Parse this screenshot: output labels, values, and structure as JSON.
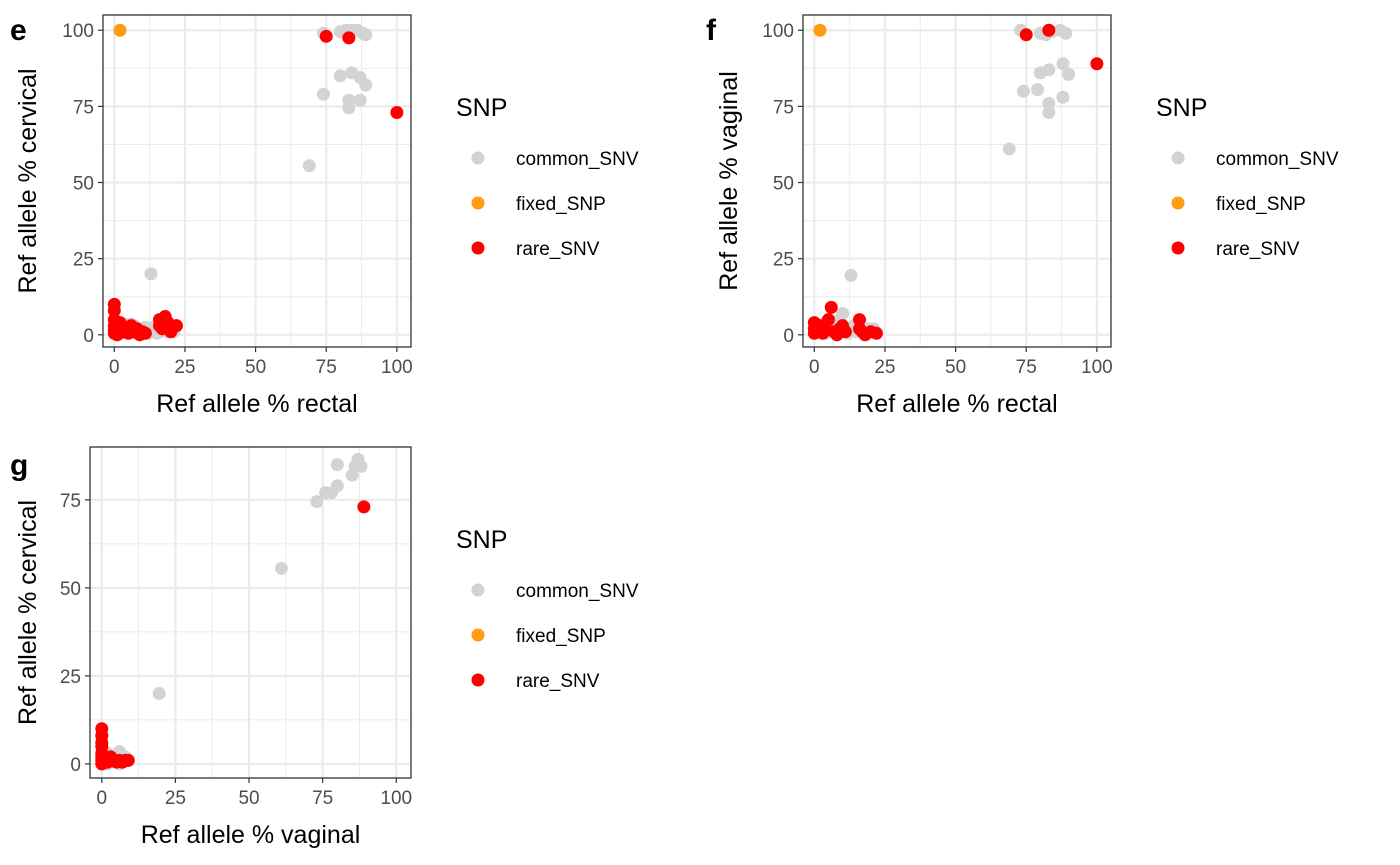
{
  "colors": {
    "common_SNV": "#d3d3d3",
    "fixed_SNP": "#ff9c0f",
    "rare_SNV": "#ff0000",
    "grid": "#ebebeb",
    "panel_border": "#333333"
  },
  "chart_data": [
    {
      "type": "scatter",
      "panel_label": "e",
      "xlabel": "Ref allele % rectal",
      "ylabel": "Ref allele % cervical",
      "xlim": [
        -4,
        105
      ],
      "ylim": [
        -4,
        105
      ],
      "x_ticks": [
        0,
        25,
        50,
        75,
        100
      ],
      "y_ticks": [
        0,
        25,
        50,
        75,
        100
      ],
      "grid": true,
      "legend": {
        "title": "SNP",
        "position": "right",
        "entries": [
          "common_SNV",
          "fixed_SNP",
          "rare_SNV"
        ]
      },
      "series": [
        {
          "name": "common_SNV",
          "color": "#d3d3d3",
          "points": [
            [
              74,
              99
            ],
            [
              80,
              99.5
            ],
            [
              82,
              100
            ],
            [
              84,
              100
            ],
            [
              86,
              100
            ],
            [
              88,
              99
            ],
            [
              89,
              98.5
            ],
            [
              80,
              85
            ],
            [
              84,
              86
            ],
            [
              87,
              84.5
            ],
            [
              89,
              82
            ],
            [
              74,
              79
            ],
            [
              83,
              77
            ],
            [
              87,
              77
            ],
            [
              83,
              74.5
            ],
            [
              69,
              55.5
            ],
            [
              13,
              20
            ],
            [
              1,
              3
            ],
            [
              2,
              1.5
            ],
            [
              3,
              0.5
            ],
            [
              4,
              3.5
            ],
            [
              5,
              2
            ],
            [
              6,
              1
            ],
            [
              7,
              3
            ],
            [
              8,
              0.5
            ],
            [
              9,
              2
            ],
            [
              10,
              1
            ],
            [
              11,
              2.5
            ],
            [
              12,
              0.5
            ],
            [
              13,
              1.5
            ],
            [
              14,
              2.5
            ],
            [
              15,
              0.5
            ],
            [
              16,
              1
            ],
            [
              18,
              2
            ],
            [
              19,
              1
            ],
            [
              20,
              2.5
            ],
            [
              21,
              1
            ],
            [
              3,
              3
            ],
            [
              6,
              3.5
            ],
            [
              11,
              1
            ]
          ]
        },
        {
          "name": "fixed_SNP",
          "color": "#ff9c0f",
          "points": [
            [
              2,
              100
            ]
          ]
        },
        {
          "name": "rare_SNV",
          "color": "#ff0000",
          "points": [
            [
              75,
              98
            ],
            [
              83,
              97.5
            ],
            [
              100,
              73
            ],
            [
              0,
              10
            ],
            [
              0,
              8
            ],
            [
              0,
              5
            ],
            [
              0,
              3
            ],
            [
              0,
              1.5
            ],
            [
              0,
              0.5
            ],
            [
              1,
              0
            ],
            [
              2,
              4
            ],
            [
              3,
              1
            ],
            [
              4,
              2
            ],
            [
              5,
              0.5
            ],
            [
              6,
              3
            ],
            [
              7,
              1
            ],
            [
              8,
              2
            ],
            [
              9,
              0
            ],
            [
              10,
              1
            ],
            [
              11,
              0.5
            ],
            [
              16,
              3
            ],
            [
              16,
              5
            ],
            [
              17,
              2
            ],
            [
              18,
              6
            ],
            [
              19,
              4
            ],
            [
              20,
              1
            ],
            [
              22,
              3
            ]
          ]
        }
      ]
    },
    {
      "type": "scatter",
      "panel_label": "f",
      "xlabel": "Ref allele % rectal",
      "ylabel": "Ref allele % vaginal",
      "xlim": [
        -4,
        105
      ],
      "ylim": [
        -4,
        105
      ],
      "x_ticks": [
        0,
        25,
        50,
        75,
        100
      ],
      "y_ticks": [
        0,
        25,
        50,
        75,
        100
      ],
      "grid": true,
      "legend": {
        "title": "SNP",
        "position": "right",
        "entries": [
          "common_SNV",
          "fixed_SNP",
          "rare_SNV"
        ]
      },
      "series": [
        {
          "name": "common_SNV",
          "color": "#d3d3d3",
          "points": [
            [
              73,
              100
            ],
            [
              80,
              99
            ],
            [
              82,
              98.5
            ],
            [
              84,
              99.5
            ],
            [
              87,
              100
            ],
            [
              89,
              99
            ],
            [
              80,
              86
            ],
            [
              83,
              87
            ],
            [
              88,
              89
            ],
            [
              90,
              85.5
            ],
            [
              74,
              80
            ],
            [
              79,
              80.5
            ],
            [
              83,
              76
            ],
            [
              88,
              78
            ],
            [
              83,
              73
            ],
            [
              69,
              61
            ],
            [
              13,
              19.5
            ],
            [
              1,
              2
            ],
            [
              2,
              1
            ],
            [
              3,
              3
            ],
            [
              4,
              0.5
            ],
            [
              5,
              2
            ],
            [
              6,
              1
            ],
            [
              7,
              3
            ],
            [
              8,
              0.5
            ],
            [
              9,
              2
            ],
            [
              10,
              7
            ],
            [
              11,
              2
            ],
            [
              12,
              0.5
            ],
            [
              13,
              1.5
            ],
            [
              14,
              3
            ],
            [
              15,
              1
            ],
            [
              16,
              2
            ],
            [
              18,
              1
            ],
            [
              19,
              2
            ],
            [
              20,
              1
            ],
            [
              21,
              2
            ],
            [
              4,
              4
            ],
            [
              9,
              5
            ]
          ]
        },
        {
          "name": "fixed_SNP",
          "color": "#ff9c0f",
          "points": [
            [
              2,
              100
            ]
          ]
        },
        {
          "name": "rare_SNV",
          "color": "#ff0000",
          "points": [
            [
              75,
              98.5
            ],
            [
              83,
              100
            ],
            [
              100,
              89
            ],
            [
              0,
              4
            ],
            [
              0,
              2
            ],
            [
              0,
              0.5
            ],
            [
              1,
              1
            ],
            [
              2,
              3
            ],
            [
              3,
              0.5
            ],
            [
              4,
              2
            ],
            [
              5,
              5
            ],
            [
              6,
              9
            ],
            [
              7,
              1
            ],
            [
              8,
              0
            ],
            [
              9,
              2
            ],
            [
              10,
              3
            ],
            [
              11,
              1
            ],
            [
              16,
              5
            ],
            [
              16,
              2
            ],
            [
              17,
              1
            ],
            [
              18,
              0
            ],
            [
              20,
              1
            ],
            [
              22,
              0.5
            ]
          ]
        }
      ]
    },
    {
      "type": "scatter",
      "panel_label": "g",
      "xlabel": "Ref allele % vaginal",
      "ylabel": "Ref allele % cervical",
      "xlim": [
        -4,
        105
      ],
      "ylim": [
        -4,
        90
      ],
      "x_ticks": [
        0,
        25,
        50,
        75,
        100
      ],
      "y_ticks": [
        0,
        25,
        50,
        75
      ],
      "grid": true,
      "legend": {
        "title": "SNP",
        "position": "right",
        "entries": [
          "common_SNV",
          "fixed_SNP",
          "rare_SNV"
        ]
      },
      "series": [
        {
          "name": "common_SNV",
          "color": "#d3d3d3",
          "points": [
            [
              80,
              85
            ],
            [
              87,
              86.5
            ],
            [
              86,
              84.5
            ],
            [
              88,
              84.5
            ],
            [
              85,
              82
            ],
            [
              80,
              79
            ],
            [
              76,
              77
            ],
            [
              78,
              77
            ],
            [
              73,
              74.5
            ],
            [
              61,
              55.5
            ],
            [
              19.5,
              20
            ],
            [
              1,
              0.5
            ],
            [
              2,
              3
            ],
            [
              3,
              1
            ],
            [
              4,
              2
            ],
            [
              5,
              0.5
            ],
            [
              6,
              3.5
            ],
            [
              7,
              1
            ],
            [
              8,
              2
            ],
            [
              2,
              0
            ],
            [
              3,
              0.5
            ],
            [
              5,
              1.5
            ],
            [
              6,
              0
            ]
          ]
        },
        {
          "name": "fixed_SNP",
          "color": "#ff9c0f",
          "points": []
        },
        {
          "name": "rare_SNV",
          "color": "#ff0000",
          "points": [
            [
              89,
              73
            ],
            [
              0,
              10
            ],
            [
              0,
              8
            ],
            [
              0,
              6
            ],
            [
              0,
              5
            ],
            [
              0,
              3
            ],
            [
              0,
              2
            ],
            [
              0,
              1
            ],
            [
              0,
              0
            ],
            [
              1,
              0.5
            ],
            [
              2,
              0.5
            ],
            [
              3,
              2
            ],
            [
              4,
              1
            ],
            [
              5,
              0.5
            ],
            [
              6,
              1
            ],
            [
              7,
              0.5
            ],
            [
              8,
              1
            ],
            [
              9,
              1
            ]
          ]
        }
      ]
    }
  ]
}
